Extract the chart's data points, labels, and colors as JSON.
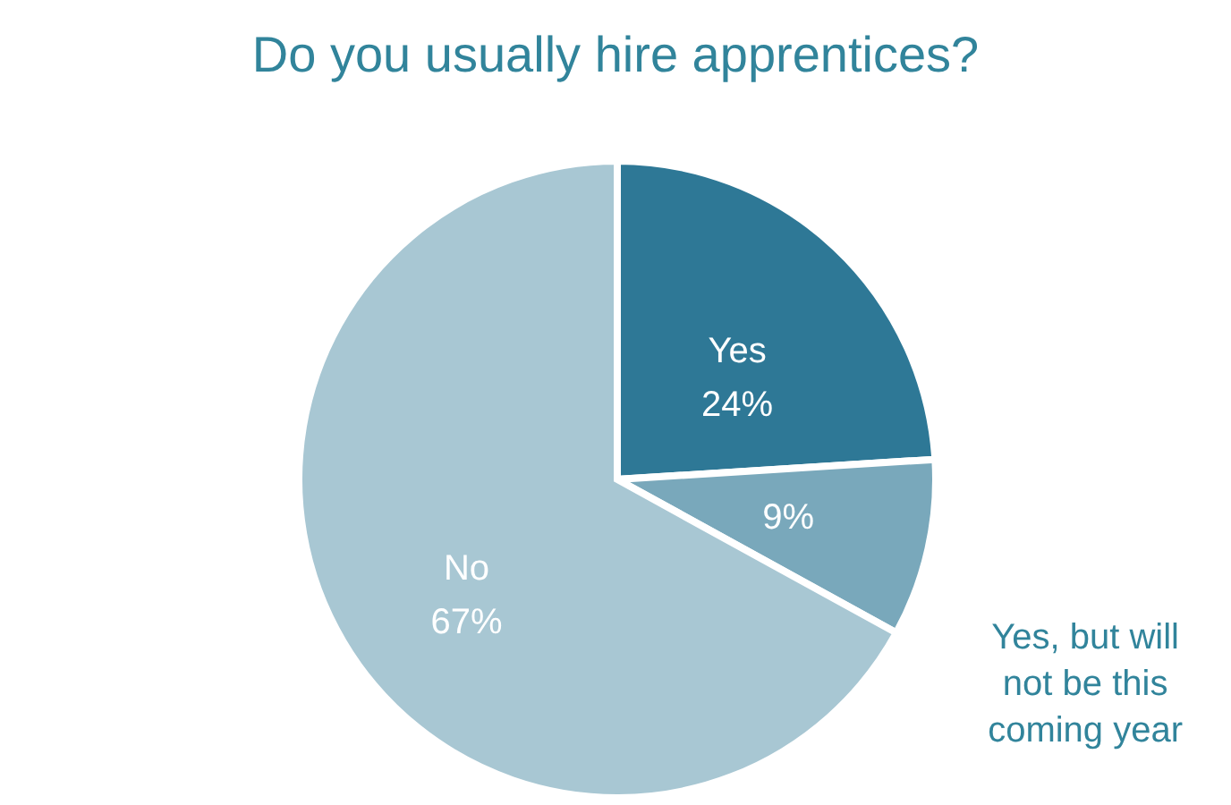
{
  "chart_data": {
    "type": "pie",
    "title": "Do you usually hire apprentices?",
    "categories": [
      "Yes",
      "Yes, but will not be this coming year",
      "No"
    ],
    "values": [
      24,
      9,
      67
    ],
    "value_labels": [
      "24%",
      "9%",
      "67%"
    ],
    "colors": [
      "#2e7896",
      "#79a8bb",
      "#a8c7d3"
    ],
    "legend": false
  }
}
